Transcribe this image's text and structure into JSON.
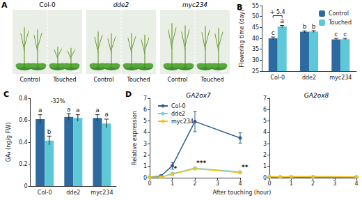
{
  "photo_panel": {
    "panel": "A",
    "genotypes": [
      "Col-0",
      "dde2",
      "myc234"
    ],
    "conditions": [
      "Control",
      "Touched"
    ]
  },
  "chart_data": [
    {
      "panel": "B",
      "type": "bar",
      "categories": [
        "Col-0",
        "dde2",
        "myc234"
      ],
      "ylabel": "Flowering time (day)",
      "ylim": [
        25,
        55
      ],
      "yticks": [
        25,
        30,
        35,
        40,
        45,
        50,
        55
      ],
      "grid": false,
      "legend": "upper right",
      "annotation": "+ 5.4",
      "series": [
        {
          "name": "Control",
          "color": "#2c6aa0",
          "values": [
            40.0,
            43.0,
            39.5
          ],
          "errors": [
            0.6,
            0.4,
            0.5
          ],
          "letters": [
            "c",
            "b",
            "c"
          ]
        },
        {
          "name": "Touched",
          "color": "#5fc8d8",
          "values": [
            45.4,
            43.1,
            39.6
          ],
          "errors": [
            0.5,
            0.4,
            0.4
          ],
          "letters": [
            "a",
            "b",
            "c"
          ]
        }
      ]
    },
    {
      "panel": "C",
      "type": "bar",
      "categories": [
        "Col-0",
        "dde2",
        "myc234"
      ],
      "ylabel": "GA₄ (ng/g FW)",
      "ylim": [
        0,
        0.8
      ],
      "yticks": [
        0,
        0.2,
        0.4,
        0.6,
        0.8
      ],
      "grid": false,
      "annotation": "-32%",
      "series": [
        {
          "name": "Control",
          "color": "#2c6aa0",
          "values": [
            0.61,
            0.63,
            0.62
          ],
          "errors": [
            0.04,
            0.03,
            0.03
          ],
          "letters": [
            "a",
            "a",
            "a"
          ]
        },
        {
          "name": "Touched",
          "color": "#5fc8d8",
          "values": [
            0.415,
            0.62,
            0.57
          ],
          "errors": [
            0.04,
            0.03,
            0.04
          ],
          "letters": [
            "b",
            "a",
            "a"
          ]
        }
      ]
    },
    {
      "panel": "D",
      "type": "line",
      "xlabel": "After touching (hour)",
      "ylabel": "Relative expression",
      "xlim": [
        0,
        4
      ],
      "xticks": [
        0,
        1,
        2,
        3,
        4
      ],
      "ylim": [
        0,
        7
      ],
      "yticks": [
        0,
        1,
        2,
        3,
        4,
        5,
        6,
        7
      ],
      "grid": false,
      "legend": "upper left",
      "marker": "circle",
      "x": [
        0,
        0.5,
        1,
        2,
        4
      ],
      "subplots": [
        {
          "title": "GA2ox7",
          "series": [
            {
              "name": "Col-0",
              "color": "#2e5f8a",
              "values": [
                0.05,
                0.15,
                1.05,
                4.95,
                3.5
              ],
              "errors": [
                0.03,
                0.1,
                0.3,
                0.9,
                0.45
              ]
            },
            {
              "name": "dde2",
              "color": "#6fd0e8",
              "values": [
                0.05,
                0.05,
                0.35,
                0.85,
                0.5
              ],
              "errors": [
                0.02,
                0.03,
                0.1,
                0.1,
                0.08
              ],
              "significance": [
                null,
                null,
                "*",
                "***",
                "**"
              ]
            },
            {
              "name": "myc234",
              "color": "#f2c21b",
              "values": [
                0.05,
                0.05,
                0.3,
                0.8,
                0.45
              ],
              "errors": [
                0.02,
                0.02,
                0.08,
                0.1,
                0.08
              ]
            }
          ]
        },
        {
          "title": "GA2ox8",
          "series": [
            {
              "name": "Col-0",
              "color": "#2e5f8a",
              "values": [
                0.05,
                0.05,
                0.05,
                0.05,
                0.05
              ],
              "errors": [
                0.01,
                0.01,
                0.01,
                0.01,
                0.01
              ]
            },
            {
              "name": "dde2",
              "color": "#6fd0e8",
              "values": [
                0.1,
                0.08,
                0.08,
                0.1,
                0.08
              ],
              "errors": [
                0.01,
                0.01,
                0.01,
                0.01,
                0.01
              ]
            },
            {
              "name": "myc234",
              "color": "#f2c21b",
              "values": [
                0.08,
                0.07,
                0.1,
                0.08,
                0.08
              ],
              "errors": [
                0.01,
                0.01,
                0.01,
                0.01,
                0.01
              ]
            }
          ]
        }
      ]
    }
  ]
}
